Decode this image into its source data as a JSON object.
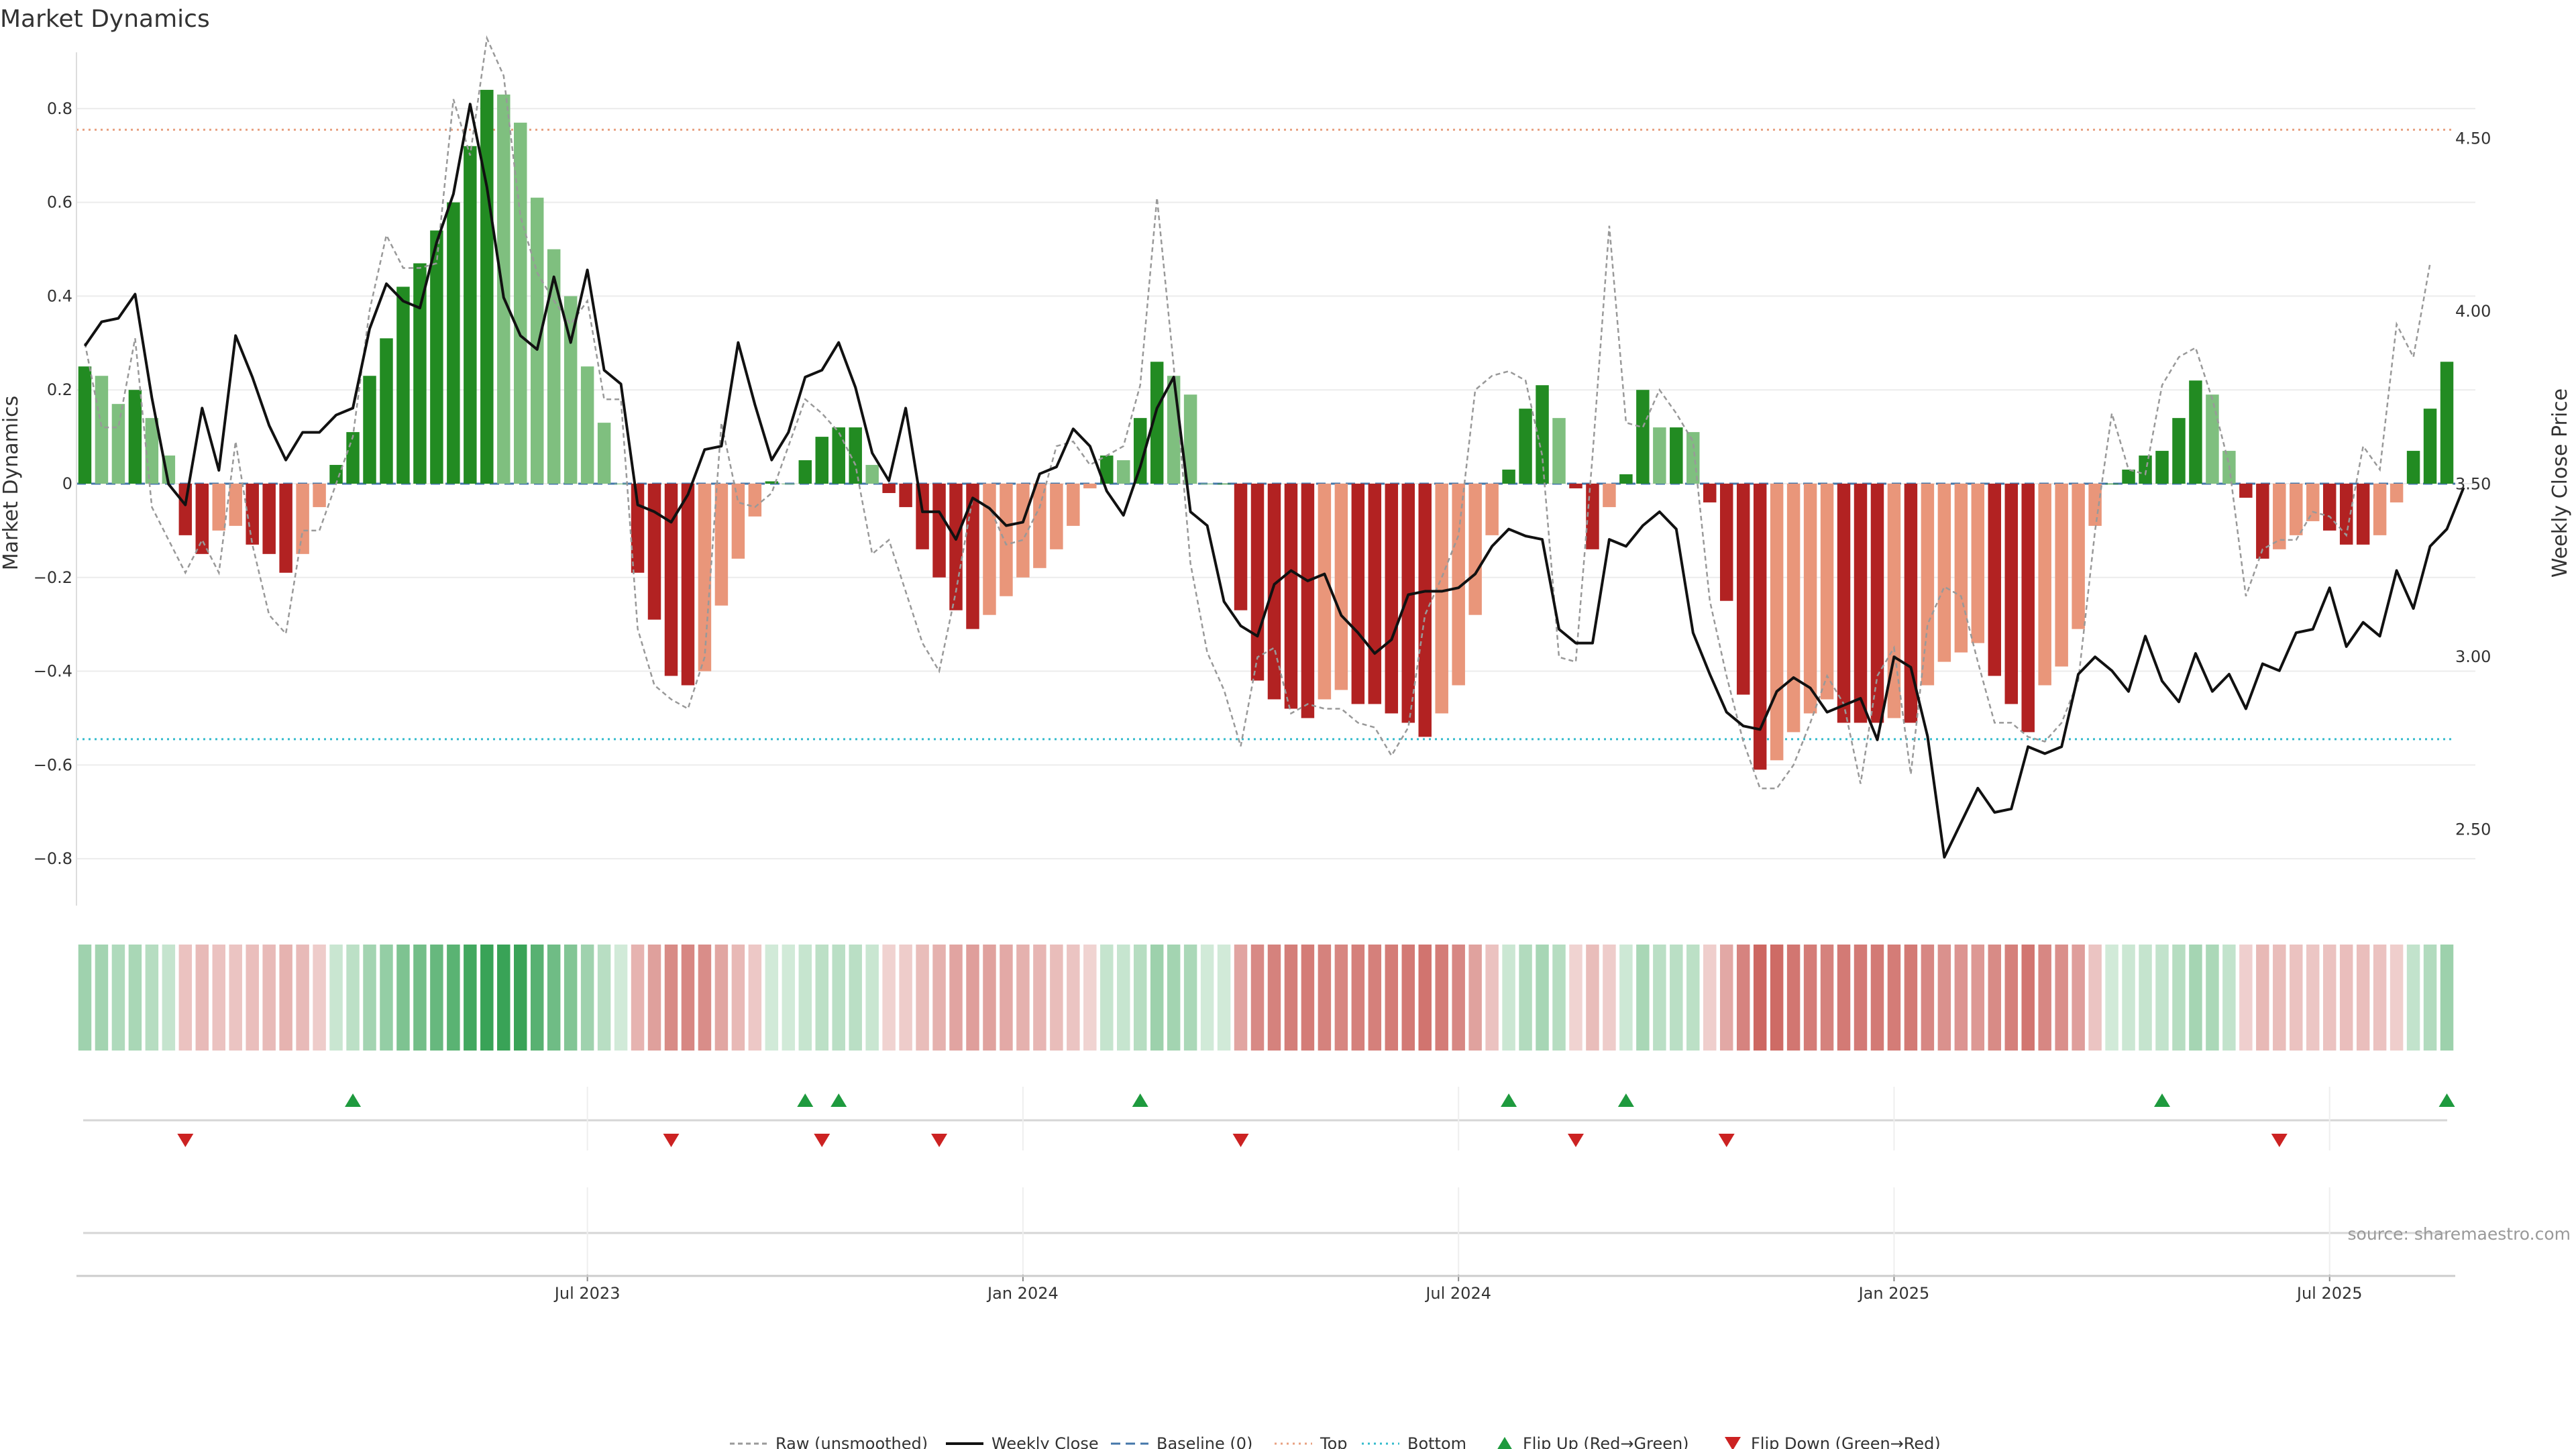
{
  "chart_data": {
    "type": "bar",
    "title": "Market Dynamics",
    "ylabel": "Market Dynamics",
    "y2label": "Weekly Close Price",
    "ylim": [
      -0.9,
      0.92
    ],
    "y2lim": [
      2.28,
      4.75
    ],
    "yticks": [
      "0.8",
      "0.6",
      "0.4",
      "0.2",
      "0",
      "−0.2",
      "−0.4",
      "−0.6",
      "−0.8"
    ],
    "yticks_values": [
      0.8,
      0.6,
      0.4,
      0.2,
      0,
      -0.2,
      -0.4,
      -0.6,
      -0.8
    ],
    "y2ticks": [
      "4.50",
      "4.00",
      "3.50",
      "3.00",
      "2.50"
    ],
    "y2ticks_values": [
      4.5,
      4.0,
      3.5,
      3.0,
      2.5
    ],
    "x_labels": [
      "Jul 2023",
      "Jan 2024",
      "Jul 2024",
      "Jan 2025",
      "Jul 2025"
    ],
    "x_label_weeks": [
      30,
      56,
      82,
      108,
      134
    ],
    "top_line": 0.755,
    "bottom_line": -0.545,
    "bars": [
      0.25,
      0.23,
      0.17,
      0.2,
      0.14,
      0.06,
      -0.11,
      -0.15,
      -0.1,
      -0.09,
      -0.13,
      -0.15,
      -0.19,
      -0.15,
      -0.05,
      0.04,
      0.11,
      0.23,
      0.31,
      0.42,
      0.47,
      0.54,
      0.6,
      0.72,
      0.84,
      0.83,
      0.77,
      0.61,
      0.5,
      0.4,
      0.25,
      0.13,
      0,
      -0.19,
      -0.29,
      -0.41,
      -0.43,
      -0.4,
      -0.26,
      -0.16,
      -0.07,
      0.005,
      0,
      0.05,
      0.1,
      0.12,
      0.12,
      0.04,
      -0.02,
      -0.05,
      -0.14,
      -0.2,
      -0.27,
      -0.31,
      -0.28,
      -0.24,
      -0.2,
      -0.18,
      -0.14,
      -0.09,
      -0.01,
      0.06,
      0.05,
      0.14,
      0.26,
      0.23,
      0.19,
      0,
      0,
      -0.27,
      -0.42,
      -0.46,
      -0.48,
      -0.5,
      -0.46,
      -0.44,
      -0.47,
      -0.47,
      -0.49,
      -0.51,
      -0.54,
      -0.49,
      -0.43,
      -0.28,
      -0.11,
      0.03,
      0.16,
      0.21,
      0.14,
      -0.01,
      -0.14,
      -0.05,
      0.02,
      0.2,
      0.12,
      0.12,
      0.11,
      -0.04,
      -0.25,
      -0.45,
      -0.61,
      -0.59,
      -0.53,
      -0.49,
      -0.46,
      -0.51,
      -0.51,
      -0.51,
      -0.5,
      -0.51,
      -0.43,
      -0.38,
      -0.36,
      -0.34,
      -0.41,
      -0.47,
      -0.53,
      -0.43,
      -0.39,
      -0.31,
      -0.09,
      0,
      0.03,
      0.06,
      0.07,
      0.14,
      0.22,
      0.19,
      0.07,
      -0.03,
      -0.16,
      -0.14,
      -0.11,
      -0.08,
      -0.1,
      -0.13,
      -0.13,
      -0.11,
      -0.04,
      0.07,
      0.16,
      0.26
    ],
    "close": [
      3.9,
      3.97,
      3.98,
      4.05,
      3.75,
      3.5,
      3.44,
      3.72,
      3.54,
      3.93,
      3.81,
      3.67,
      3.57,
      3.65,
      3.65,
      3.7,
      3.72,
      3.95,
      4.08,
      4.03,
      4.01,
      4.2,
      4.34,
      4.6,
      4.36,
      4.04,
      3.93,
      3.89,
      4.1,
      3.91,
      4.12,
      3.83,
      3.79,
      3.44,
      3.42,
      3.39,
      3.47,
      3.6,
      3.61,
      3.91,
      3.73,
      3.57,
      3.65,
      3.81,
      3.83,
      3.91,
      3.78,
      3.59,
      3.51,
      3.72,
      3.42,
      3.42,
      3.34,
      3.46,
      3.43,
      3.38,
      3.39,
      3.53,
      3.55,
      3.66,
      3.61,
      3.48,
      3.41,
      3.55,
      3.72,
      3.81,
      3.42,
      3.38,
      3.16,
      3.09,
      3.06,
      3.21,
      3.25,
      3.22,
      3.24,
      3.12,
      3.07,
      3.01,
      3.05,
      3.18,
      3.19,
      3.19,
      3.2,
      3.24,
      3.32,
      3.37,
      3.35,
      3.34,
      3.08,
      3.04,
      3.04,
      3.34,
      3.32,
      3.38,
      3.42,
      3.37,
      3.07,
      2.95,
      2.84,
      2.8,
      2.79,
      2.9,
      2.94,
      2.91,
      2.84,
      2.86,
      2.88,
      2.76,
      3.0,
      2.97,
      2.77,
      2.42,
      2.52,
      2.62,
      2.55,
      2.56,
      2.74,
      2.72,
      2.74,
      2.95,
      3.0,
      2.96,
      2.9,
      3.06,
      2.93,
      2.87,
      3.01,
      2.9,
      2.95,
      2.85,
      2.98,
      2.96,
      3.07,
      3.08,
      3.2,
      3.03,
      3.1,
      3.06,
      3.25,
      3.14,
      3.32,
      3.37,
      3.49
    ],
    "raw": [
      0.3,
      0.12,
      0.12,
      0.31,
      -0.05,
      -0.12,
      -0.19,
      -0.12,
      -0.19,
      0.09,
      -0.13,
      -0.28,
      -0.32,
      -0.1,
      -0.1,
      0,
      0.1,
      0.37,
      0.53,
      0.46,
      0.46,
      0.47,
      0.82,
      0.7,
      0.95,
      0.87,
      0.57,
      0.45,
      0.39,
      0.34,
      0.39,
      0.18,
      0.18,
      -0.31,
      -0.43,
      -0.46,
      -0.48,
      -0.37,
      0.13,
      -0.04,
      -0.05,
      -0.02,
      0.08,
      0.18,
      0.15,
      0.11,
      0.04,
      -0.15,
      -0.12,
      -0.23,
      -0.34,
      -0.4,
      -0.23,
      -0.03,
      -0.05,
      -0.13,
      -0.12,
      -0.05,
      0.08,
      0.09,
      0.04,
      0.06,
      0.08,
      0.21,
      0.61,
      0.25,
      -0.17,
      -0.36,
      -0.44,
      -0.56,
      -0.37,
      -0.35,
      -0.49,
      -0.47,
      -0.48,
      -0.48,
      -0.51,
      -0.52,
      -0.58,
      -0.52,
      -0.28,
      -0.2,
      -0.11,
      0.2,
      0.23,
      0.24,
      0.22,
      0.06,
      -0.37,
      -0.38,
      0.06,
      0.55,
      0.13,
      0.12,
      0.2,
      0.15,
      0.09,
      -0.25,
      -0.41,
      -0.55,
      -0.65,
      -0.65,
      -0.6,
      -0.51,
      -0.41,
      -0.47,
      -0.64,
      -0.41,
      -0.35,
      -0.62,
      -0.3,
      -0.22,
      -0.24,
      -0.38,
      -0.51,
      -0.51,
      -0.54,
      -0.55,
      -0.51,
      -0.42,
      -0.1,
      0.15,
      0.03,
      0.02,
      0.21,
      0.27,
      0.29,
      0.18,
      0.04,
      -0.24,
      -0.14,
      -0.12,
      -0.12,
      -0.06,
      -0.07,
      -0.11,
      0.08,
      0.03,
      0.34,
      0.27,
      0.47
    ],
    "flip_up_weeks": [
      16,
      43,
      45,
      63,
      85,
      92,
      124,
      141
    ],
    "flip_down_weeks": [
      6,
      35,
      44,
      51,
      69,
      89,
      98,
      131
    ],
    "legend": [
      "Raw (unsmoothed)",
      "Weekly Close",
      "Baseline (0)",
      "Top",
      "Bottom",
      "Flip Up (Red→Green)",
      "Flip Down (Green→Red)"
    ],
    "source": "source: sharemaestro.com"
  },
  "colors": {
    "pos_strong": "#228b22",
    "pos_weak": "#7fbf7f",
    "neg_strong": "#b22222",
    "neg_weak": "#e9967a",
    "flip_up": "#1e9a3e",
    "flip_down": "#cc2222",
    "top_line": "#e8a080",
    "bottom_line": "#33bbcc",
    "baseline": "#4477aa"
  }
}
